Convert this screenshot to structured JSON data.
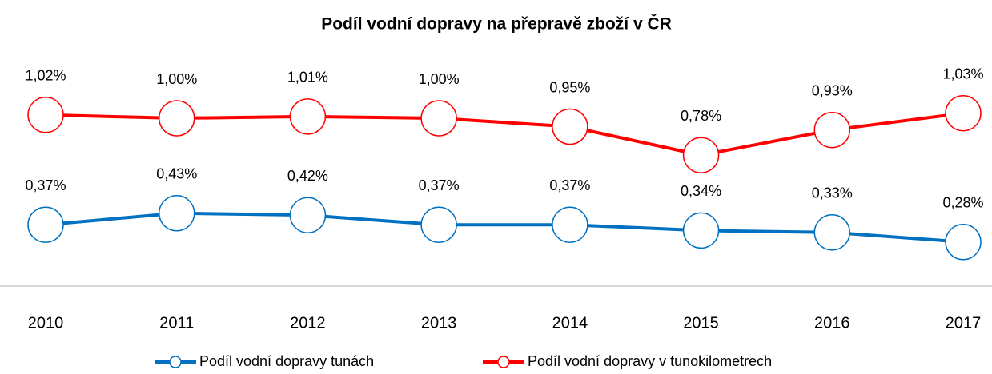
{
  "chart_data": {
    "type": "line",
    "title": "Podíl vodní dopravy na přepravě zboží v ČR",
    "categories": [
      "2010",
      "2011",
      "2012",
      "2013",
      "2014",
      "2015",
      "2016",
      "2017"
    ],
    "series": [
      {
        "name": "Podíl vodní dopravy tunách",
        "color": "#0070c0",
        "axis": "y2",
        "values": [
          0.37,
          0.43,
          0.42,
          0.37,
          0.37,
          0.34,
          0.33,
          0.28
        ],
        "value_labels": [
          "0,37%",
          "0,43%",
          "0,42%",
          "0,37%",
          "0,37%",
          "0,34%",
          "0,33%",
          "0,28%"
        ]
      },
      {
        "name": "Podíl vodní dopravy v tunokilometrech",
        "color": "#ff0000",
        "values": [
          1.02,
          1.0,
          1.01,
          1.0,
          0.95,
          0.78,
          0.93,
          1.03
        ],
        "value_labels": [
          "1,02%",
          "1,00%",
          "1,01%",
          "1,00%",
          "0,95%",
          "0,78%",
          "0,93%",
          "1,03%"
        ]
      }
    ],
    "ylim": [
      0,
      1.2
    ],
    "y2lim": [
      0.05,
      1.1
    ],
    "grid": false,
    "legend": "bottom"
  }
}
